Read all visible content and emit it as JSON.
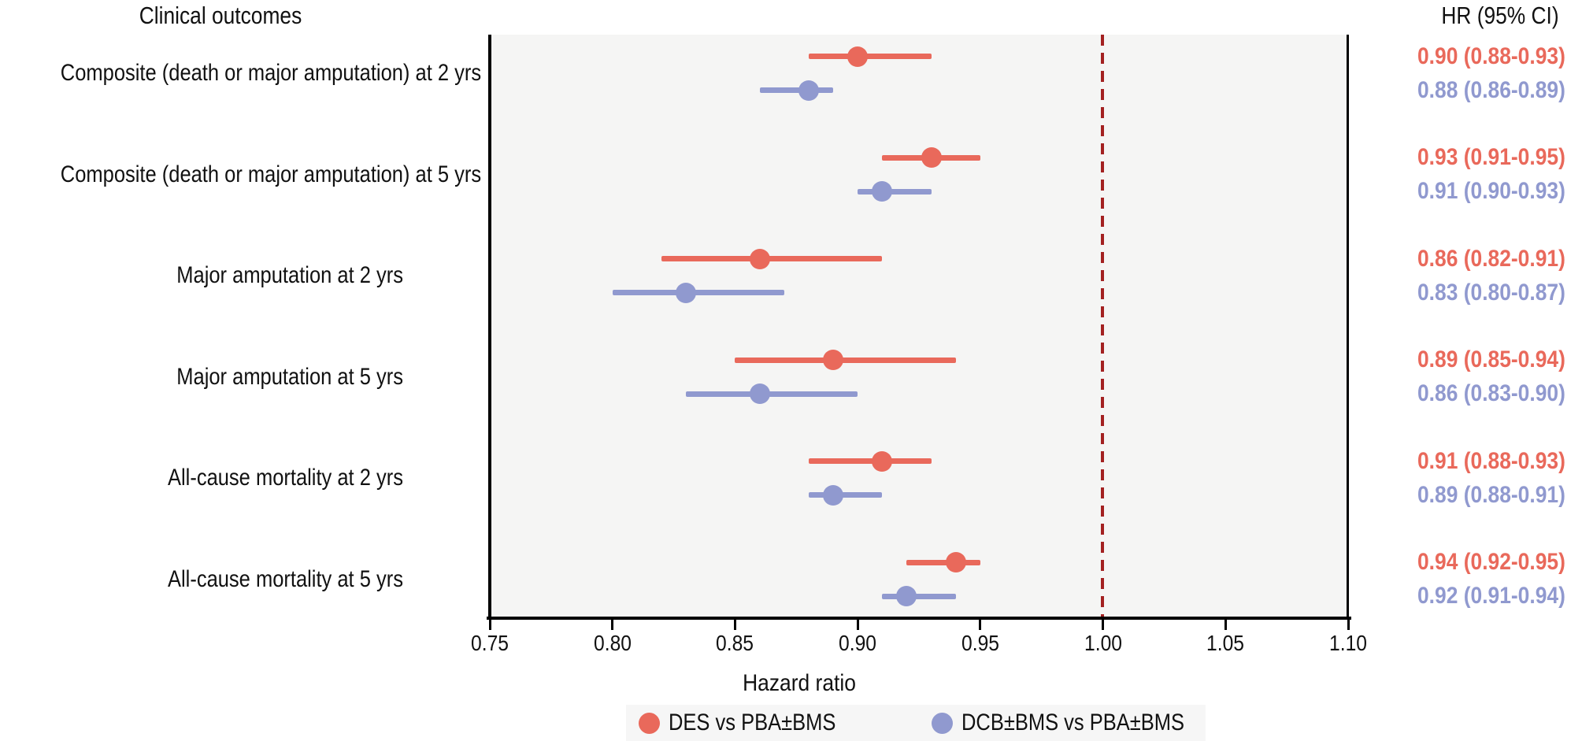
{
  "title_left": "Clinical outcomes",
  "title_right": "HR (95% CI)",
  "xlabel": "Hazard ratio",
  "colors": {
    "des": "#e9695b",
    "dcb": "#9099cf",
    "reference_line": "#a32121",
    "plot_background": "#f5f5f4",
    "legend_background": "#f6f6f6",
    "axis": "#000000"
  },
  "chart_data": {
    "type": "forest",
    "xlabel": "Hazard ratio",
    "xlim": [
      0.75,
      1.1
    ],
    "x_ticks": [
      "0.75",
      "0.80",
      "0.85",
      "0.90",
      "0.95",
      "1.00",
      "1.05",
      "1.10"
    ],
    "reference_line_x": 1.0,
    "grid": false,
    "legend_position": "bottom",
    "series_names": [
      "DES vs PBA±BMS",
      "DCB±BMS vs PBA±BMS"
    ],
    "rows": [
      {
        "label": "Composite (death or major amputation) at 2 yrs",
        "des": {
          "hr": 0.9,
          "lo": 0.88,
          "hi": 0.93,
          "text": "0.90 (0.88-0.93)"
        },
        "dcb": {
          "hr": 0.88,
          "lo": 0.86,
          "hi": 0.89,
          "text": "0.88 (0.86-0.89)"
        }
      },
      {
        "label": "Composite (death or major amputation) at 5 yrs",
        "des": {
          "hr": 0.93,
          "lo": 0.91,
          "hi": 0.95,
          "text": "0.93 (0.91-0.95)"
        },
        "dcb": {
          "hr": 0.91,
          "lo": 0.9,
          "hi": 0.93,
          "text": "0.91 (0.90-0.93)"
        }
      },
      {
        "label": "Major amputation at 2 yrs",
        "des": {
          "hr": 0.86,
          "lo": 0.82,
          "hi": 0.91,
          "text": "0.86 (0.82-0.91)"
        },
        "dcb": {
          "hr": 0.83,
          "lo": 0.8,
          "hi": 0.87,
          "text": "0.83 (0.80-0.87)"
        }
      },
      {
        "label": "Major amputation at 5 yrs",
        "des": {
          "hr": 0.89,
          "lo": 0.85,
          "hi": 0.94,
          "text": "0.89 (0.85-0.94)"
        },
        "dcb": {
          "hr": 0.86,
          "lo": 0.83,
          "hi": 0.9,
          "text": "0.86 (0.83-0.90)"
        }
      },
      {
        "label": "All-cause mortality at 2 yrs",
        "des": {
          "hr": 0.91,
          "lo": 0.88,
          "hi": 0.93,
          "text": "0.91 (0.88-0.93)"
        },
        "dcb": {
          "hr": 0.89,
          "lo": 0.88,
          "hi": 0.91,
          "text": "0.89 (0.88-0.91)"
        }
      },
      {
        "label": "All-cause mortality at 5 yrs",
        "des": {
          "hr": 0.94,
          "lo": 0.92,
          "hi": 0.95,
          "text": "0.94 (0.92-0.95)"
        },
        "dcb": {
          "hr": 0.92,
          "lo": 0.91,
          "hi": 0.94,
          "text": "0.92 (0.91-0.94)"
        }
      }
    ]
  },
  "legend": {
    "items": [
      {
        "label": "DES vs PBA±BMS",
        "series": "des"
      },
      {
        "label": "DCB±BMS vs PBA±BMS",
        "series": "dcb"
      }
    ]
  }
}
